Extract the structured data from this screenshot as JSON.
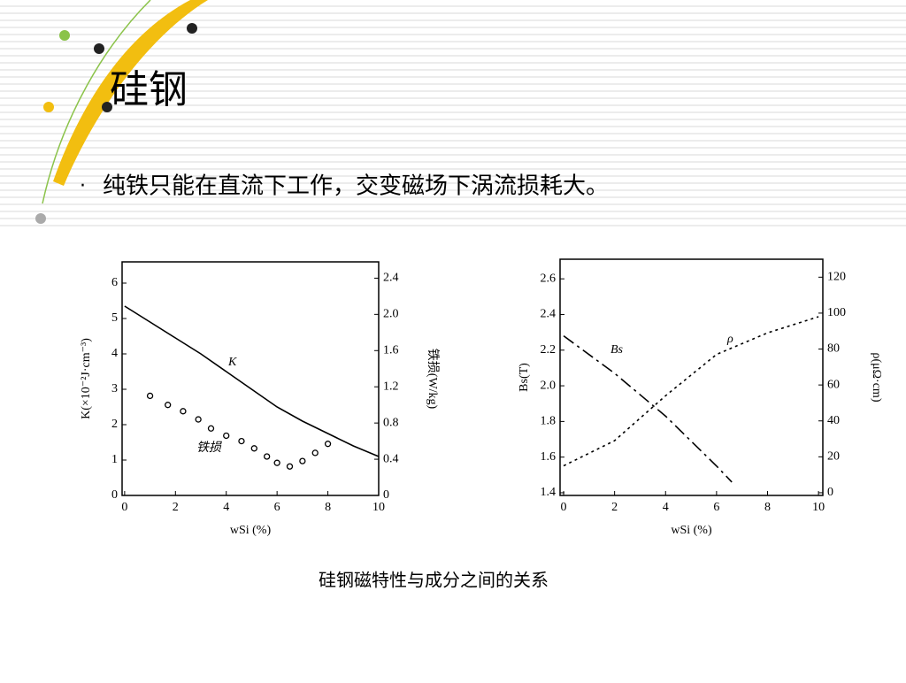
{
  "slide": {
    "title": "硅钢",
    "bullet": "纯铁只能在直流下工作，交变磁场下涡流损耗大。",
    "caption": "硅钢磁特性与成分之间的关系"
  },
  "chart_data": [
    {
      "type": "line",
      "xlabel": "wSi (%)",
      "ylabel": "K(×10⁻²J·cm⁻³)",
      "y2label": "铁损(W/kg)",
      "xlim": [
        -0.1,
        10
      ],
      "xticks": [
        0,
        2,
        4,
        6,
        8,
        10
      ],
      "ylim": [
        0,
        6.6
      ],
      "yticks": [
        0,
        1,
        2,
        3,
        4,
        5,
        6
      ],
      "y2lim": [
        0,
        2.58
      ],
      "y2ticks": [
        0,
        0.4,
        0.8,
        1.2,
        1.6,
        {
          "value": 2,
          "label": "2.0"
        },
        2.4
      ],
      "annotations": [
        "K",
        "铁损"
      ],
      "series": [
        {
          "name": "K",
          "color": "#000000",
          "style": "solid",
          "x": [
            0,
            1,
            2,
            3,
            4,
            5,
            6,
            7,
            8,
            9,
            10
          ],
          "values": [
            5.35,
            4.9,
            4.45,
            4.0,
            3.5,
            3.0,
            2.5,
            2.1,
            1.75,
            1.4,
            1.1
          ]
        },
        {
          "name": "铁损",
          "color": "#000000",
          "style": "markers",
          "axis": "y2",
          "x": [
            1,
            1.7,
            2.3,
            2.9,
            3.4,
            4,
            4.6,
            5.1,
            5.6,
            6,
            6.5,
            7,
            7.5,
            8
          ],
          "values": [
            1.1,
            1.0,
            0.93,
            0.84,
            0.74,
            0.66,
            0.6,
            0.52,
            0.43,
            0.36,
            0.32,
            0.38,
            0.47,
            0.57
          ]
        }
      ]
    },
    {
      "type": "line",
      "xlabel": "wSi (%)",
      "ylabel": "Bs(T)",
      "y2label": "ρ(μΩ·cm)",
      "xlim": [
        -0.14,
        10.17
      ],
      "xticks": [
        0,
        2,
        4,
        6,
        8,
        10
      ],
      "ylim": [
        1.385,
        2.71
      ],
      "yticks": [
        1.4,
        1.6,
        1.8,
        {
          "value": 2,
          "label": "2.0"
        },
        2.2,
        2.4,
        2.6
      ],
      "y2lim": [
        -1.5,
        130
      ],
      "y2ticks": [
        0,
        20,
        40,
        60,
        80,
        100,
        120
      ],
      "annotations": [
        "Bs",
        "ρ"
      ],
      "series": [
        {
          "name": "Bs",
          "color": "#000000",
          "style": "dashed",
          "x": [
            0,
            2,
            4,
            6,
            6.6
          ],
          "values": [
            2.28,
            2.07,
            1.83,
            1.55,
            1.46
          ]
        },
        {
          "name": "ρ",
          "color": "#000000",
          "style": "dotted",
          "axis": "y2",
          "x": [
            0,
            2,
            4,
            6,
            8,
            10
          ],
          "values": [
            15,
            29,
            54,
            77,
            89,
            98
          ]
        }
      ]
    }
  ]
}
